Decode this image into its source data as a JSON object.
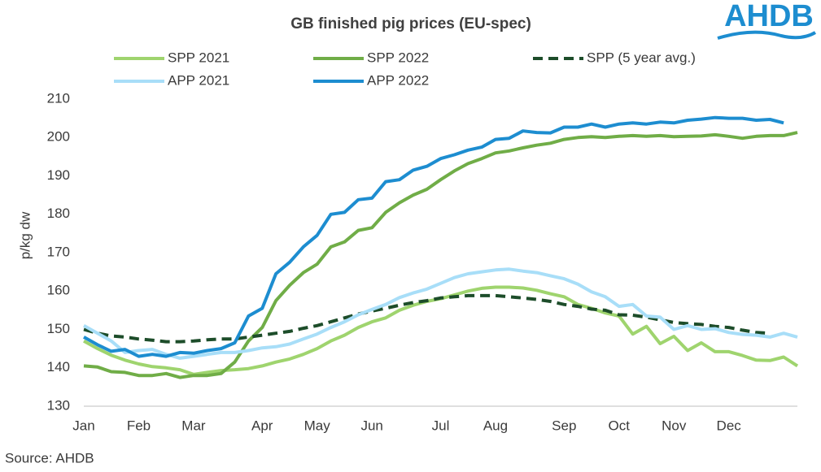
{
  "logo": "AHDB",
  "source": "Source: AHDB",
  "chart_data": {
    "type": "line",
    "title": "GB finished pig prices (EU-spec)",
    "y_label": "p/kg dw",
    "categories": [
      "Jan",
      null,
      null,
      null,
      "Feb",
      null,
      null,
      null,
      "Mar",
      null,
      null,
      null,
      null,
      "Apr",
      null,
      null,
      null,
      "May",
      null,
      null,
      null,
      "Jun",
      null,
      null,
      null,
      null,
      "Jul",
      null,
      null,
      null,
      "Aug",
      null,
      null,
      null,
      null,
      "Sep",
      null,
      null,
      null,
      "Oct",
      null,
      null,
      null,
      "Nov",
      null,
      null,
      null,
      "Dec",
      null,
      null,
      null,
      null,
      null
    ],
    "ylim": [
      130,
      210
    ],
    "yticks": [
      130,
      140,
      150,
      160,
      170,
      180,
      190,
      200,
      210
    ],
    "grid": false,
    "series": [
      {
        "name": "SPP 2021",
        "color": "#9fd46e",
        "linestyle": "solid",
        "values": [
          147,
          145,
          143.3,
          142,
          141,
          140.3,
          140,
          139.5,
          138.3,
          138.8,
          139.3,
          139.5,
          139.8,
          140.5,
          141.5,
          142.3,
          143.5,
          145,
          147,
          148.5,
          150.5,
          152,
          153,
          155,
          156.3,
          157.3,
          158,
          159,
          160,
          160.7,
          161,
          161,
          160.8,
          160.2,
          159.3,
          158.5,
          156.5,
          155.5,
          154.3,
          153.5,
          148.8,
          150.8,
          146.3,
          148.2,
          144.5,
          146.5,
          144.2,
          144.2,
          143.2,
          142,
          141.9,
          142.8,
          140.5
        ]
      },
      {
        "name": "SPP 2022",
        "color": "#70ad47",
        "linestyle": "solid",
        "values": [
          140.5,
          140.2,
          139,
          138.8,
          138,
          138,
          138.5,
          137.5,
          138,
          138,
          138.5,
          141.5,
          147,
          150.5,
          157.5,
          161.5,
          164.8,
          167,
          171.5,
          172.8,
          175.8,
          176.5,
          180.5,
          183,
          185,
          186.5,
          189,
          191.3,
          193.2,
          194.5,
          196,
          196.5,
          197.3,
          198,
          198.5,
          199.5,
          200,
          200.2,
          200,
          200.3,
          200.5,
          200.3,
          200.5,
          200.2,
          200.3,
          200.4,
          200.7,
          200.3,
          199.8,
          200.3,
          200.5,
          200.5,
          201.3
        ]
      },
      {
        "name": "SPP (5 year avg.)",
        "color": "#1d4d2a",
        "linestyle": "dashed",
        "values": [
          150,
          149,
          148.3,
          148,
          147.5,
          147.2,
          146.8,
          146.8,
          147,
          147.3,
          147.5,
          147.5,
          148,
          148.5,
          149,
          149.5,
          150.3,
          151,
          152,
          153,
          154,
          154.8,
          155.5,
          156.3,
          157,
          157.5,
          158.2,
          158.5,
          158.8,
          158.8,
          158.8,
          158.5,
          158.2,
          157.8,
          157.3,
          156.5,
          156,
          155.3,
          155,
          153.8,
          153.7,
          153.2,
          152.5,
          151.8,
          151.5,
          151.3,
          150.8,
          150.5,
          149.8,
          149.2,
          149,
          null,
          null
        ]
      },
      {
        "name": "APP 2021",
        "color": "#a8def8",
        "linestyle": "solid",
        "values": [
          151,
          149,
          147,
          144,
          144.5,
          144.8,
          143.5,
          142.5,
          143,
          143.5,
          144,
          144,
          144.5,
          145.2,
          145.5,
          146.2,
          147.5,
          148.8,
          150.5,
          152,
          153.8,
          155.2,
          156.5,
          158.3,
          159.5,
          160.5,
          162,
          163.5,
          164.5,
          165,
          165.5,
          165.7,
          165.2,
          164.8,
          164,
          163.2,
          161.8,
          159.8,
          158.5,
          156,
          156.5,
          153.5,
          153.2,
          150,
          151,
          150,
          150.2,
          149.2,
          148.7,
          148.5,
          148,
          149,
          148
        ]
      },
      {
        "name": "APP 2022",
        "color": "#1d8dd0",
        "linestyle": "solid",
        "values": [
          148,
          146,
          144.3,
          144.8,
          143,
          143.5,
          143,
          144,
          143.8,
          144.5,
          145,
          146.5,
          153.5,
          155.5,
          164.5,
          167.5,
          171.5,
          174.5,
          180,
          180.5,
          183.8,
          184.2,
          188.5,
          189,
          191.5,
          192.5,
          194.5,
          195.5,
          196.7,
          197.5,
          199.5,
          199.8,
          201.7,
          201.3,
          201.2,
          202.7,
          202.7,
          203.5,
          202.7,
          203.5,
          203.8,
          203.5,
          204,
          203.8,
          204.5,
          204.8,
          205.2,
          205,
          205,
          204.5,
          204.7,
          203.8,
          null
        ]
      }
    ]
  }
}
